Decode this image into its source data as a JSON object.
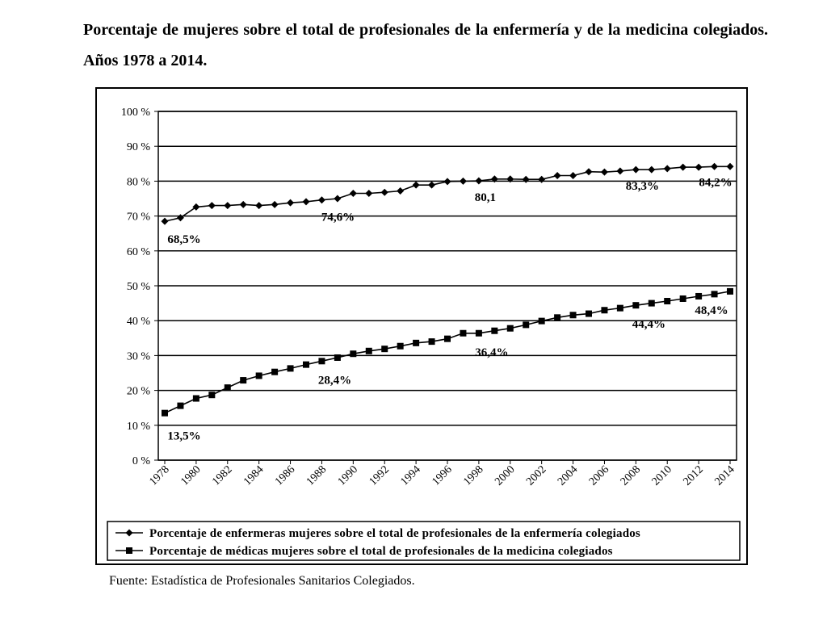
{
  "title": "Porcentaje de mujeres sobre el total de profesionales de la enfermería y de la medicina colegiados. Años 1978 a 2014.",
  "source": "Fuente: Estadística de Profesionales Sanitarios Colegiados.",
  "chart_data": {
    "type": "line",
    "x": [
      1978,
      1979,
      1980,
      1981,
      1982,
      1983,
      1984,
      1985,
      1986,
      1987,
      1988,
      1989,
      1990,
      1991,
      1992,
      1993,
      1994,
      1995,
      1996,
      1997,
      1998,
      1999,
      2000,
      2001,
      2002,
      2003,
      2004,
      2005,
      2006,
      2007,
      2008,
      2009,
      2010,
      2011,
      2012,
      2013,
      2014
    ],
    "x_tick_labels": [
      "1978",
      "1980",
      "1982",
      "1984",
      "1986",
      "1988",
      "1990",
      "1992",
      "1994",
      "1996",
      "1998",
      "2000",
      "2002",
      "2004",
      "2006",
      "2008",
      "2010",
      "2012",
      "2014"
    ],
    "y_tick_labels": [
      "0%",
      "10%",
      "20%",
      "30%",
      "40%",
      "50%",
      "60%",
      "70%",
      "80%",
      "90%",
      "100%"
    ],
    "ylim": [
      0,
      100
    ],
    "grid": "horizontal",
    "legend_position": "bottom",
    "series": [
      {
        "name": "Porcentaje de enfermeras mujeres sobre el total de profesionales de la enfermería colegiados",
        "marker": "diamond",
        "values": [
          68.5,
          69.5,
          72.6,
          73.0,
          73.0,
          73.3,
          73.0,
          73.3,
          73.8,
          74.1,
          74.6,
          75.0,
          76.5,
          76.5,
          76.8,
          77.2,
          78.9,
          78.9,
          79.9,
          80.0,
          80.1,
          80.6,
          80.6,
          80.5,
          80.5,
          81.6,
          81.6,
          82.7,
          82.6,
          82.9,
          83.3,
          83.3,
          83.6,
          84.0,
          84.0,
          84.2,
          84.2
        ]
      },
      {
        "name": "Porcentaje de médicas mujeres sobre el total de profesionales de la medicina colegiados",
        "marker": "square",
        "values": [
          13.5,
          15.6,
          17.7,
          18.7,
          20.8,
          22.9,
          24.2,
          25.3,
          26.3,
          27.4,
          28.4,
          29.4,
          30.5,
          31.3,
          31.9,
          32.7,
          33.6,
          34.0,
          34.8,
          36.4,
          36.4,
          37.1,
          37.8,
          38.8,
          39.9,
          40.9,
          41.6,
          42.0,
          43.0,
          43.6,
          44.4,
          45.0,
          45.6,
          46.3,
          47.0,
          47.6,
          48.4
        ]
      }
    ],
    "data_labels": [
      {
        "series": 0,
        "x": 1978,
        "text": "68,5%"
      },
      {
        "series": 0,
        "x": 1988,
        "text": "74,6%"
      },
      {
        "series": 0,
        "x": 1998,
        "text": "80,1"
      },
      {
        "series": 0,
        "x": 2008,
        "text": "83,3%"
      },
      {
        "series": 0,
        "x": 2014,
        "text": "84,2%"
      },
      {
        "series": 1,
        "x": 1978,
        "text": "13,5%"
      },
      {
        "series": 1,
        "x": 1988,
        "text": "28,4%"
      },
      {
        "series": 1,
        "x": 1998,
        "text": "36,4%"
      },
      {
        "series": 1,
        "x": 2008,
        "text": "44,4%"
      },
      {
        "series": 1,
        "x": 2014,
        "text": "48,4%"
      }
    ]
  }
}
